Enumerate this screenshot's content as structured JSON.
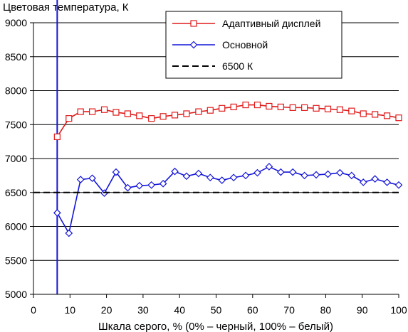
{
  "chart_data": {
    "type": "line",
    "title": "Цветовая температура, К",
    "xlabel": "Шкала серого, % (0% – черный, 100% – белый)",
    "ylabel": "",
    "xlim": [
      0,
      100
    ],
    "ylim": [
      5000,
      9000
    ],
    "xticks": [
      0,
      10,
      20,
      30,
      40,
      50,
      60,
      70,
      80,
      90,
      100
    ],
    "yticks": [
      5000,
      5500,
      6000,
      6500,
      7000,
      7500,
      8000,
      8500,
      9000
    ],
    "grid": true,
    "legend_position": "top-right",
    "series": [
      {
        "name": "Адаптивный дисплей",
        "color": "#e01a1a",
        "marker": "square",
        "x": [
          6.5,
          9.7,
          12.9,
          16.1,
          19.4,
          22.6,
          25.8,
          29.0,
          32.3,
          35.5,
          38.7,
          41.9,
          45.2,
          48.4,
          51.6,
          54.8,
          58.1,
          61.3,
          64.5,
          67.7,
          71.0,
          74.2,
          77.4,
          80.6,
          83.9,
          87.1,
          90.3,
          93.5,
          96.8,
          100
        ],
        "values": [
          7320,
          7590,
          7690,
          7690,
          7720,
          7680,
          7660,
          7630,
          7590,
          7620,
          7640,
          7660,
          7690,
          7710,
          7740,
          7760,
          7790,
          7790,
          7770,
          7760,
          7750,
          7750,
          7740,
          7730,
          7720,
          7700,
          7660,
          7650,
          7630,
          7600
        ]
      },
      {
        "name": "Основной",
        "color": "#1414d8",
        "marker": "diamond",
        "x": [
          6.5,
          9.7,
          12.9,
          16.1,
          19.4,
          22.6,
          25.8,
          29.0,
          32.3,
          35.5,
          38.7,
          41.9,
          45.2,
          48.4,
          51.6,
          54.8,
          58.1,
          61.3,
          64.5,
          67.7,
          71.0,
          74.2,
          77.4,
          80.6,
          83.9,
          87.1,
          90.3,
          93.5,
          96.8,
          100
        ],
        "values": [
          6200,
          5900,
          6690,
          6710,
          6490,
          6800,
          6570,
          6600,
          6610,
          6630,
          6810,
          6740,
          6780,
          6720,
          6680,
          6720,
          6750,
          6790,
          6880,
          6800,
          6800,
          6750,
          6760,
          6770,
          6790,
          6750,
          6650,
          6700,
          6650,
          6610
        ]
      },
      {
        "name": "6500 К",
        "color": "#000000",
        "style": "dashed",
        "x": [
          0,
          100
        ],
        "values": [
          6500,
          6500
        ]
      }
    ],
    "vertical_markers": [
      {
        "x": 6.5,
        "color": "#1414d8"
      }
    ]
  }
}
